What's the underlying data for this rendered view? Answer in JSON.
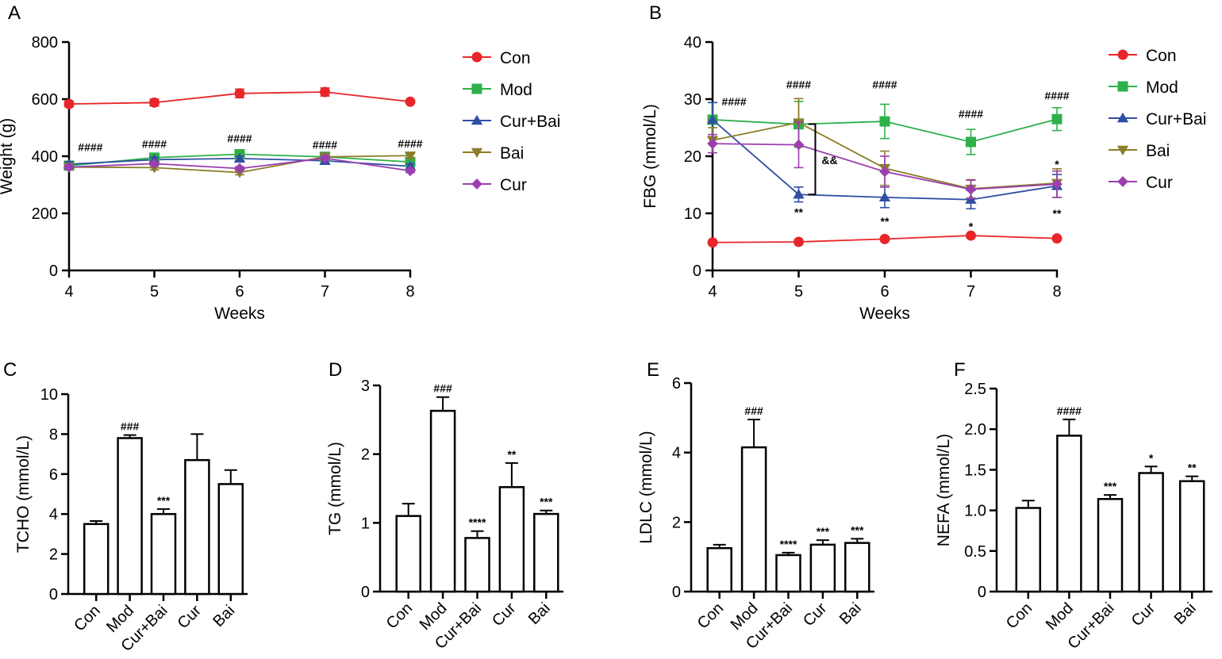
{
  "chart_data": [
    {
      "panel": "A",
      "type": "line",
      "xlabel": "Weeks",
      "ylabel": "Weight (g)",
      "x": [
        4,
        5,
        6,
        7,
        8
      ],
      "xlim": [
        4,
        8
      ],
      "ylim": [
        0,
        800
      ],
      "yticks": [
        0,
        200,
        400,
        600,
        800
      ],
      "grid": false,
      "legend": "top-right",
      "series": [
        {
          "name": "Con",
          "color": "#e8262a",
          "marker": "circle",
          "values": [
            583,
            588,
            620,
            625,
            591
          ],
          "err": [
            10,
            12,
            15,
            14,
            4
          ]
        },
        {
          "name": "Mod",
          "color": "#2eb04a",
          "marker": "square",
          "values": [
            367,
            395,
            407,
            398,
            380
          ],
          "err": [
            8,
            10,
            9,
            10,
            8
          ]
        },
        {
          "name": "Cur+Bai",
          "color": "#2f4fa3",
          "marker": "triangle-up",
          "values": [
            372,
            388,
            392,
            384,
            365
          ],
          "err": [
            8,
            8,
            8,
            9,
            8
          ]
        },
        {
          "name": "Bai",
          "color": "#8b7d2a",
          "marker": "triangle-down",
          "values": [
            362,
            360,
            343,
            398,
            402
          ],
          "err": [
            8,
            8,
            8,
            8,
            8
          ]
        },
        {
          "name": "Cur",
          "color": "#9b3fb0",
          "marker": "diamond",
          "values": [
            362,
            374,
            357,
            393,
            349
          ],
          "err": [
            6,
            6,
            6,
            6,
            6
          ]
        }
      ],
      "annotations": [
        {
          "text": "####",
          "x": 4.25,
          "y": 432
        },
        {
          "text": "####",
          "x": 5,
          "y": 443
        },
        {
          "text": "####",
          "x": 6,
          "y": 463
        },
        {
          "text": "####",
          "x": 7,
          "y": 440
        },
        {
          "text": "####",
          "x": 8,
          "y": 445
        }
      ]
    },
    {
      "panel": "B",
      "type": "line",
      "xlabel": "Weeks",
      "ylabel": "FBG (mmol/L)",
      "x": [
        4,
        5,
        6,
        7,
        8
      ],
      "xlim": [
        4,
        8
      ],
      "ylim": [
        0,
        40
      ],
      "yticks": [
        0,
        10,
        20,
        30,
        40
      ],
      "grid": false,
      "legend": "top-right",
      "series": [
        {
          "name": "Con",
          "color": "#e8262a",
          "marker": "circle",
          "values": [
            4.9,
            5.0,
            5.5,
            6.1,
            5.6
          ],
          "err": [
            0.2,
            0.2,
            0.2,
            0.3,
            0.2
          ]
        },
        {
          "name": "Mod",
          "color": "#2eb04a",
          "marker": "square",
          "values": [
            26.4,
            25.6,
            26.1,
            22.5,
            26.5
          ],
          "err": [
            3.0,
            4.0,
            3.0,
            2.2,
            2.0
          ]
        },
        {
          "name": "Cur+Bai",
          "color": "#2f4fa3",
          "marker": "triangle-up",
          "values": [
            26.4,
            13.3,
            12.8,
            12.4,
            14.8
          ],
          "err": [
            3.0,
            1.3,
            1.8,
            1.6,
            2.0
          ]
        },
        {
          "name": "Bai",
          "color": "#8b7d2a",
          "marker": "triangle-down",
          "values": [
            22.8,
            25.9,
            17.9,
            14.3,
            15.3
          ],
          "err": [
            2.2,
            4.2,
            3.0,
            1.6,
            2.5
          ]
        },
        {
          "name": "Cur",
          "color": "#9b3fb0",
          "marker": "diamond",
          "values": [
            22.2,
            22.0,
            17.3,
            14.2,
            15.1
          ],
          "err": [
            1.6,
            4.0,
            2.7,
            1.6,
            2.3
          ]
        }
      ],
      "annotations": [
        {
          "text": "####",
          "x": 4.25,
          "y": 29.6
        },
        {
          "text": "####",
          "x": 5,
          "y": 32.6
        },
        {
          "text": "####",
          "x": 6,
          "y": 32.6
        },
        {
          "text": "####",
          "x": 7,
          "y": 27.4
        },
        {
          "text": "####",
          "x": 8,
          "y": 30.6
        },
        {
          "text": "**",
          "x": 5,
          "y": 10.2
        },
        {
          "text": "**",
          "x": 6,
          "y": 8.6
        },
        {
          "text": "*",
          "x": 7,
          "y": 7.7
        },
        {
          "text": "*",
          "x": 8,
          "y": 18.6
        },
        {
          "text": "**",
          "x": 8,
          "y": 10.0
        },
        {
          "text": "&&",
          "x": 5.3,
          "y": 19.3
        }
      ]
    },
    {
      "panel": "C",
      "type": "bar",
      "ylabel": "TCHO (mmol/L)",
      "categories": [
        "Con",
        "Mod",
        "Cur+Bai",
        "Cur",
        "Bai"
      ],
      "values": [
        3.5,
        7.8,
        4.0,
        6.7,
        5.5
      ],
      "err": [
        0.15,
        0.15,
        0.25,
        1.3,
        0.7
      ],
      "ylim": [
        0,
        10
      ],
      "yticks": [
        0,
        2,
        4,
        6,
        8,
        10
      ],
      "labels": [
        "",
        "###",
        "***",
        "",
        ""
      ]
    },
    {
      "panel": "D",
      "type": "bar",
      "ylabel": "TG (mmol/L)",
      "categories": [
        "Con",
        "Mod",
        "Cur+Bai",
        "Cur",
        "Bai"
      ],
      "values": [
        1.1,
        2.63,
        0.78,
        1.52,
        1.13
      ],
      "err": [
        0.18,
        0.2,
        0.1,
        0.35,
        0.05
      ],
      "ylim": [
        0,
        3
      ],
      "yticks": [
        0,
        1,
        2,
        3
      ],
      "labels": [
        "",
        "###",
        "****",
        "**",
        "***"
      ]
    },
    {
      "panel": "E",
      "type": "bar",
      "ylabel": "LDLC (mmol/L)",
      "categories": [
        "Con",
        "Mod",
        "Cur+Bai",
        "Cur",
        "Bai"
      ],
      "values": [
        1.25,
        4.15,
        1.05,
        1.35,
        1.4
      ],
      "err": [
        0.1,
        0.8,
        0.07,
        0.13,
        0.12
      ],
      "ylim": [
        0,
        6
      ],
      "yticks": [
        0,
        2,
        4,
        6
      ],
      "labels": [
        "",
        "###",
        "****",
        "***",
        "***"
      ]
    },
    {
      "panel": "F",
      "type": "bar",
      "ylabel": "NEFA (mmol/L)",
      "categories": [
        "Con",
        "Mod",
        "Cur+Bai",
        "Cur",
        "Bai"
      ],
      "values": [
        1.03,
        1.92,
        1.14,
        1.46,
        1.36
      ],
      "err": [
        0.09,
        0.2,
        0.05,
        0.08,
        0.06
      ],
      "ylim": [
        0,
        2.5
      ],
      "yticks": [
        0,
        0.5,
        1.0,
        1.5,
        2.0,
        2.5
      ],
      "ytick_labels": [
        "0",
        "0.5",
        "1.0",
        "1.5",
        "2.0",
        "2.5"
      ],
      "labels": [
        "",
        "####",
        "***",
        "*",
        "**"
      ]
    }
  ]
}
